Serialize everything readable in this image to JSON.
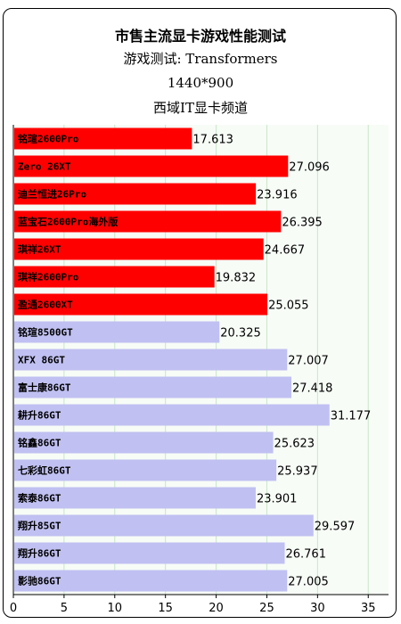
{
  "chart_data": {
    "type": "bar",
    "orientation": "horizontal",
    "title_lines": [
      "市售主流显卡游戏性能测试",
      "游戏测试: Transformers",
      "1440*900",
      "西域IT显卡频道"
    ],
    "categories": [
      "铭瑄2600Pro",
      "Zero 26XT",
      "迪兰恒进26Pro",
      "蓝宝石2600Pro海外版",
      "琪祥26XT",
      "琪祥2600Pro",
      "盈通2600XT",
      "铭瑄8500GT",
      "XFX 86GT",
      "富士康86GT",
      "耕升86GT",
      "铭鑫86GT",
      "七彩虹86GT",
      "索泰86GT",
      "翔升85GT",
      "翔升86GT",
      "影驰86GT"
    ],
    "values": [
      17.613,
      27.096,
      23.916,
      26.395,
      24.667,
      19.832,
      25.055,
      20.325,
      27.007,
      27.418,
      31.177,
      25.623,
      25.937,
      23.901,
      29.597,
      26.761,
      27.005
    ],
    "value_labels": [
      "17.613",
      "27.096",
      "23.916",
      "26.395",
      "24.667",
      "19.832",
      "25.055",
      "20.325",
      "27.007",
      "27.418",
      "31.177",
      "25.623",
      "25.937",
      "23.901",
      "29.597",
      "26.761",
      "27.005"
    ],
    "groups": [
      "red",
      "red",
      "red",
      "red",
      "red",
      "red",
      "red",
      "blue",
      "blue",
      "blue",
      "blue",
      "blue",
      "blue",
      "blue",
      "blue",
      "blue",
      "blue"
    ],
    "xlim": [
      0,
      37
    ],
    "xticks": [
      0,
      5,
      10,
      15,
      20,
      25,
      30,
      35
    ],
    "grid": true,
    "colors": {
      "red": "#ff0000",
      "blue": "#c0c0f2",
      "grid": "#c8e6c8",
      "plot_bg": "#f7fcf7"
    }
  }
}
